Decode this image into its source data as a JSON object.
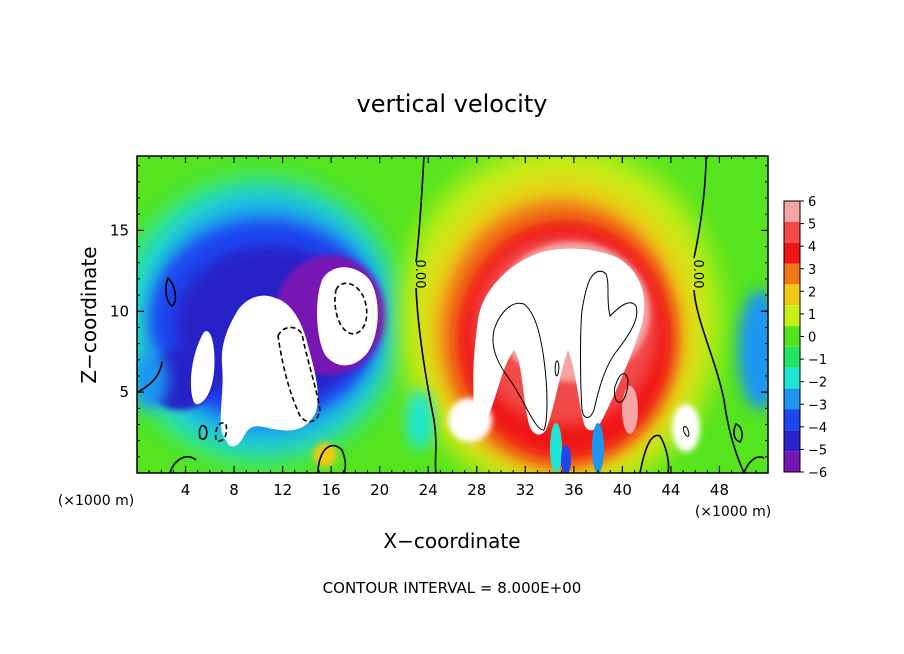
{
  "chart_data": {
    "type": "heatmap",
    "title": "vertical velocity",
    "xlabel": "X−coordinate",
    "ylabel": "Z−coordinate",
    "x_unit_left": "(×1000 m)",
    "x_unit_right": "(×1000 m)",
    "footer": "CONTOUR INTERVAL = 8.000E+00",
    "xlim": [
      0,
      52
    ],
    "ylim": [
      0,
      19.6
    ],
    "xticks": [
      4,
      8,
      12,
      16,
      20,
      24,
      28,
      32,
      36,
      40,
      44,
      48
    ],
    "xtick_labels": [
      "4",
      "8",
      "12",
      "16",
      "20",
      "24",
      "28",
      "32",
      "36",
      "40",
      "44",
      "48"
    ],
    "yticks": [
      5,
      10,
      15
    ],
    "ytick_labels": [
      "5",
      "10",
      "15"
    ],
    "contour_labels": [
      "0.00",
      "0.00"
    ],
    "colorbar": {
      "levels": [
        6,
        5,
        4,
        3,
        2,
        1,
        0,
        -1,
        -2,
        -3,
        -4,
        -5,
        -6
      ],
      "labels": [
        "6",
        "5",
        "4",
        "3",
        "2",
        "1",
        "0",
        "−1",
        "−2",
        "−3",
        "−4",
        "−5",
        "−6"
      ],
      "colors": [
        "#f5a5a5",
        "#f24a4a",
        "#f01414",
        "#f07814",
        "#f0c814",
        "#c8f014",
        "#55e41e",
        "#1ee664",
        "#1ee6d2",
        "#1e96f0",
        "#1e46f0",
        "#2823c8",
        "#7814b4"
      ]
    },
    "features": [
      {
        "name": "updraft-core",
        "value": ">6",
        "x": [
          27,
          42
        ],
        "z": [
          2,
          13
        ]
      },
      {
        "name": "downdraft-core",
        "value": "<-6",
        "x": [
          5,
          19
        ],
        "z": [
          2,
          12
        ]
      },
      {
        "name": "zero-line-west",
        "value": 0,
        "x": 22.5
      },
      {
        "name": "zero-line-east",
        "value": 0,
        "x": 46.5
      }
    ]
  }
}
